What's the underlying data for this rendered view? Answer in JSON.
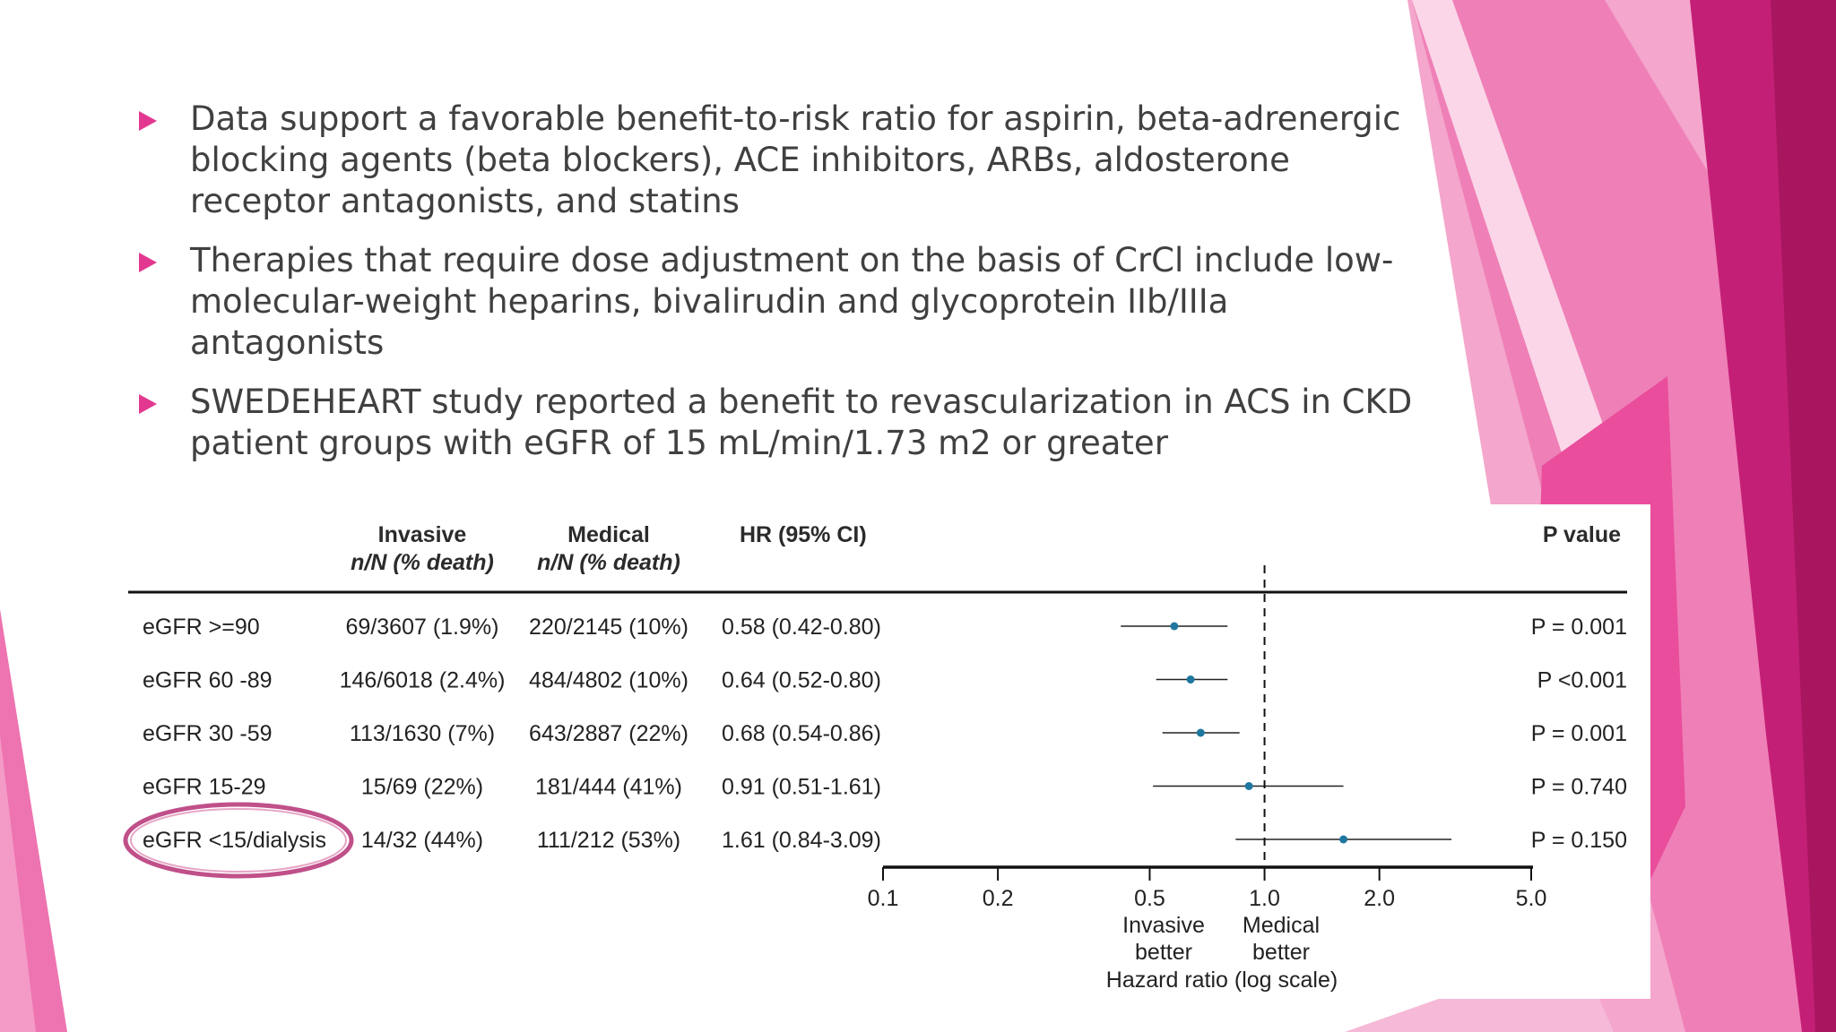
{
  "bullets": [
    "Data support a favorable benefit-to-risk ratio for aspirin, beta-adrenergic blocking agents (beta blockers), ACE inhibitors, ARBs, aldosterone receptor antagonists, and statins",
    "Therapies that require dose adjustment on the basis of CrCl include low-molecular-weight heparins, bivalirudin and glycoprotein IIb/IIIa antagonists",
    "SWEDEHEART study reported a benefit to revascularization in ACS in CKD patient groups with eGFR of 15 mL/min/1.73 m2 or greater"
  ],
  "colors": {
    "accent": "#e3388f",
    "text": "#404040",
    "point": "#1f77a0",
    "highlight_oval": "#c0508a"
  },
  "chart_data": {
    "type": "forest",
    "columns": {
      "invasive": [
        "Invasive",
        "n/N (% death)"
      ],
      "medical": [
        "Medical",
        "n/N (% death)"
      ],
      "hr": "HR (95% CI)",
      "p": "P value"
    },
    "rows": [
      {
        "label": "eGFR >=90",
        "invasive": "69/3607 (1.9%)",
        "medical": "220/2145 (10%)",
        "hr_text": "0.58 (0.42-0.80)",
        "p": "P = 0.001",
        "hr": 0.58,
        "lo": 0.42,
        "hi": 0.8
      },
      {
        "label": "eGFR 60 -89",
        "invasive": "146/6018 (2.4%)",
        "medical": "484/4802 (10%)",
        "hr_text": "0.64 (0.52-0.80)",
        "p": "P <0.001",
        "hr": 0.64,
        "lo": 0.52,
        "hi": 0.8
      },
      {
        "label": "eGFR 30 -59",
        "invasive": "113/1630 (7%)",
        "medical": "643/2887 (22%)",
        "hr_text": "0.68 (0.54-0.86)",
        "p": "P = 0.001",
        "hr": 0.68,
        "lo": 0.54,
        "hi": 0.86
      },
      {
        "label": "eGFR 15-29",
        "invasive": "15/69 (22%)",
        "medical": "181/444 (41%)",
        "hr_text": "0.91 (0.51-1.61)",
        "p": "P = 0.740",
        "hr": 0.91,
        "lo": 0.51,
        "hi": 1.61
      },
      {
        "label": "eGFR <15/dialysis",
        "invasive": "14/32 (44%)",
        "medical": "111/212 (53%)",
        "hr_text": "1.61 (0.84-3.09)",
        "p": "P = 0.150",
        "hr": 1.61,
        "lo": 0.84,
        "hi": 3.09,
        "highlighted": true
      }
    ],
    "x_scale": "log",
    "xlim": [
      0.1,
      5.0
    ],
    "xticks": [
      "0.1",
      "0.2",
      "0.5",
      "1.0",
      "2.0",
      "5.0"
    ],
    "reference_line": 1.0,
    "left_annotation": [
      "Invasive",
      "better"
    ],
    "right_annotation": [
      "Medical",
      "better"
    ],
    "xlabel": "Hazard ratio (log scale)"
  }
}
